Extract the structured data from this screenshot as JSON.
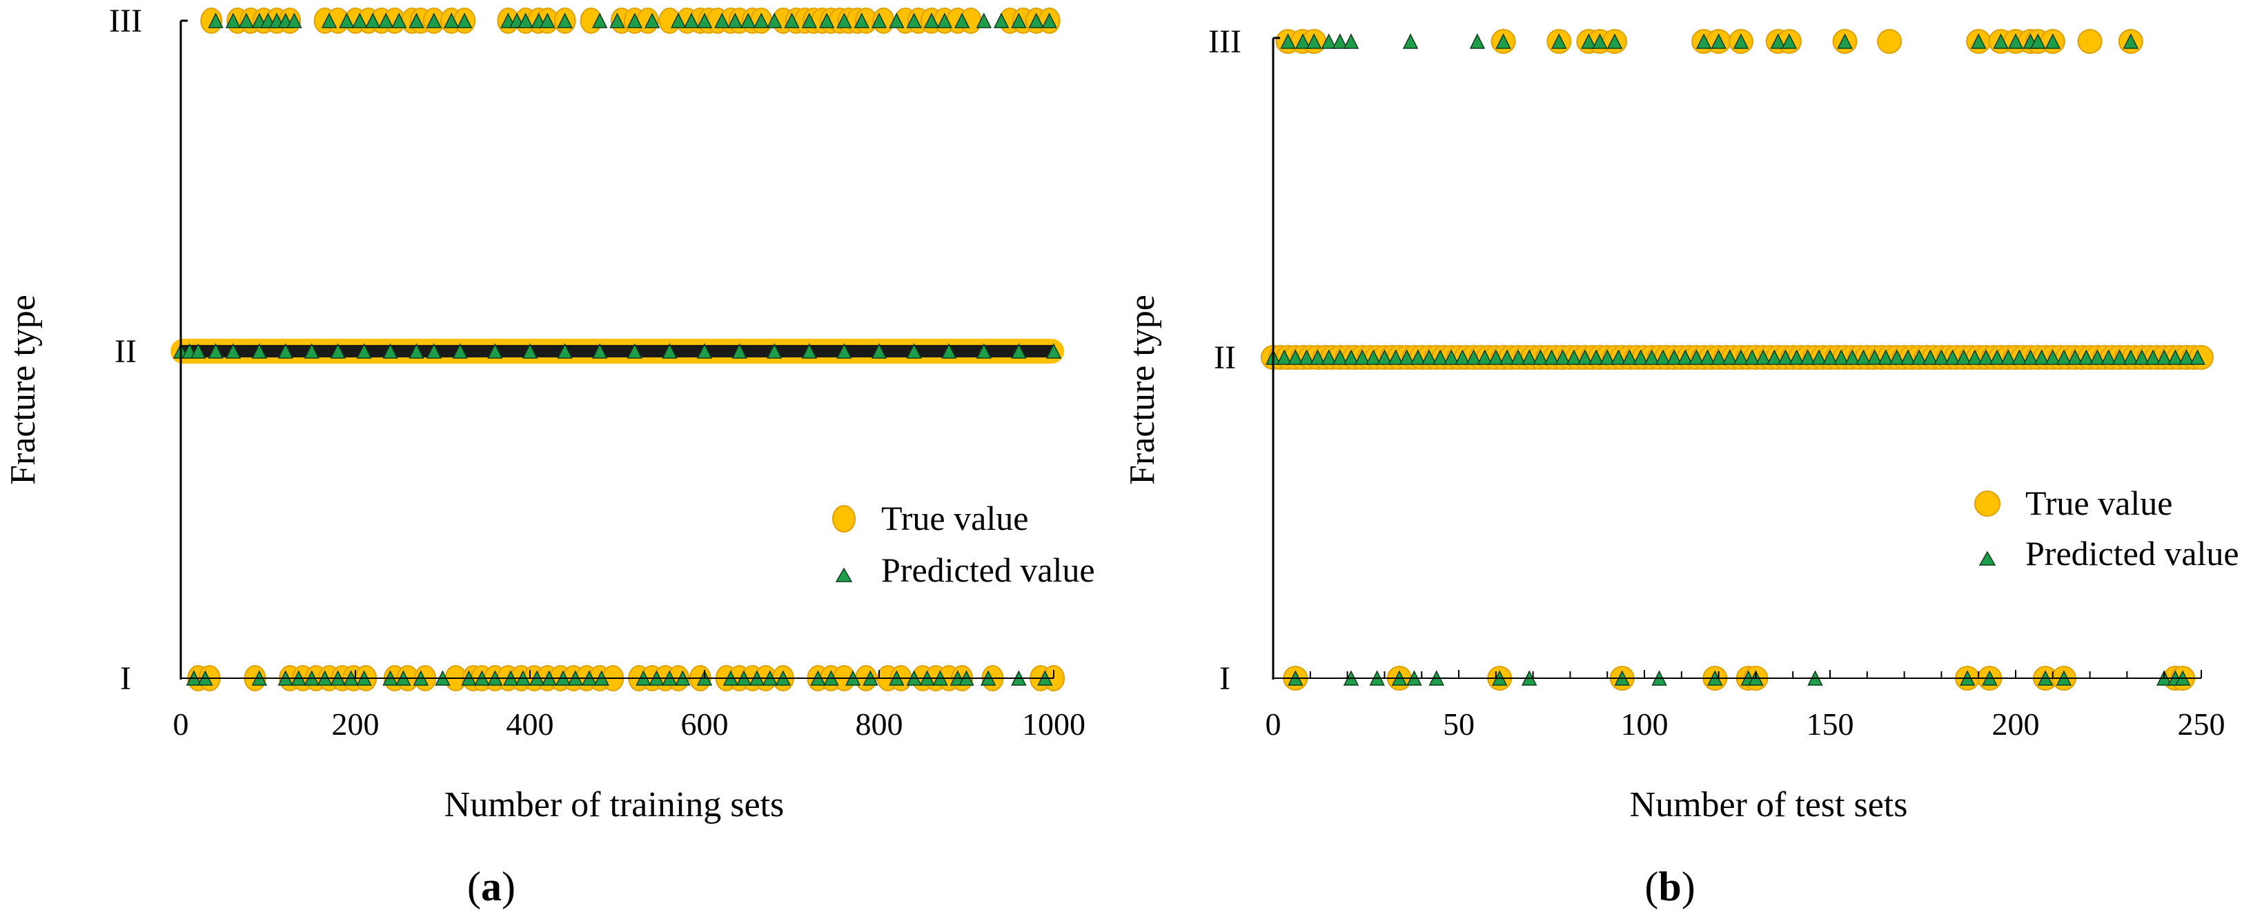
{
  "colors": {
    "true_fill": "#FFC000",
    "true_stroke": "#E0A000",
    "pred_fill": "#1E9E4A",
    "pred_stroke": "#0B3D1C",
    "axis": "#000000"
  },
  "chart_data": [
    {
      "type": "scatter",
      "panel": "(a)",
      "panel_parts": {
        "open": "(",
        "letter": "a",
        "close": ")"
      },
      "xlabel": "Number of training sets",
      "ylabel": "Fracture  type",
      "xlim": [
        0,
        1000
      ],
      "xticks": [
        0,
        200,
        400,
        600,
        800,
        1000
      ],
      "ycategories": [
        "I",
        "II",
        "III"
      ],
      "grid": false,
      "legend": {
        "position": "right-middle",
        "entries": [
          "True value",
          "Predicted value"
        ]
      },
      "series": [
        {
          "name": "True value",
          "marker": "circle",
          "class_I_x": [
            20,
            33,
            85,
            125,
            140,
            155,
            170,
            185,
            198,
            212,
            245,
            260,
            280,
            315,
            335,
            345,
            360,
            375,
            390,
            405,
            420,
            435,
            450,
            465,
            480,
            495,
            525,
            540,
            555,
            570,
            595,
            625,
            640,
            655,
            670,
            690,
            730,
            745,
            760,
            785,
            810,
            825,
            850,
            865,
            880,
            895,
            930,
            985,
            1000
          ],
          "class_II_note": "all remaining samples, continuous band from 0 to 1000",
          "class_III_x": [
            35,
            65,
            80,
            95,
            110,
            125,
            165,
            180,
            200,
            215,
            230,
            245,
            265,
            275,
            290,
            310,
            325,
            375,
            395,
            410,
            420,
            440,
            470,
            505,
            520,
            535,
            560,
            580,
            595,
            605,
            615,
            630,
            640,
            655,
            665,
            690,
            705,
            715,
            725,
            735,
            745,
            755,
            765,
            775,
            785,
            805,
            830,
            845,
            860,
            875,
            890,
            905,
            950,
            965,
            980,
            995
          ]
        },
        {
          "name": "Predicted value",
          "marker": "triangle",
          "class_I_x": [
            15,
            28,
            90,
            120,
            135,
            150,
            165,
            180,
            195,
            210,
            240,
            255,
            275,
            300,
            330,
            345,
            360,
            378,
            392,
            408,
            422,
            438,
            452,
            468,
            482,
            530,
            545,
            560,
            575,
            600,
            630,
            645,
            660,
            675,
            690,
            730,
            745,
            770,
            790,
            820,
            840,
            855,
            870,
            890,
            900,
            925,
            960,
            990
          ],
          "class_II_x": [
            0,
            10,
            20,
            40,
            60,
            90,
            120,
            150,
            180,
            210,
            240,
            270,
            290,
            320,
            360,
            400,
            440,
            480,
            520,
            560,
            600,
            640,
            680,
            720,
            760,
            800,
            840,
            880,
            920,
            960,
            1000
          ],
          "class_III_x": [
            40,
            60,
            75,
            90,
            100,
            110,
            120,
            130,
            170,
            190,
            205,
            220,
            235,
            250,
            270,
            290,
            310,
            325,
            375,
            385,
            395,
            410,
            420,
            440,
            480,
            500,
            520,
            540,
            570,
            585,
            600,
            620,
            635,
            650,
            665,
            680,
            700,
            720,
            740,
            760,
            780,
            800,
            820,
            840,
            860,
            875,
            895,
            920,
            940,
            960,
            980,
            995
          ]
        }
      ]
    },
    {
      "type": "scatter",
      "panel": "(b)",
      "panel_parts": {
        "open": "(",
        "letter": "b",
        "close": ")"
      },
      "xlabel": "Number of test sets",
      "ylabel": "Fracture  type",
      "xlim": [
        0,
        250
      ],
      "xticks": [
        0,
        50,
        100,
        150,
        200,
        250
      ],
      "minor_ticks": [
        10,
        20,
        30,
        40,
        60,
        70,
        80,
        90,
        110,
        120,
        130,
        140,
        160,
        170,
        180,
        190,
        210,
        220,
        230,
        240
      ],
      "ycategories": [
        "I",
        "II",
        "III"
      ],
      "grid": false,
      "legend": {
        "position": "right-middle",
        "entries": [
          "True value",
          "Predicted value"
        ]
      },
      "series": [
        {
          "name": "True value",
          "marker": "circle",
          "class_I_x": [
            6,
            34,
            61,
            94,
            119,
            128,
            130,
            187,
            193,
            208,
            213,
            243,
            245
          ],
          "class_II_x": [
            0,
            2,
            4,
            6,
            8,
            10,
            12,
            14,
            16,
            18,
            20,
            22,
            24,
            26,
            28,
            30,
            32,
            34,
            36,
            38,
            40,
            42,
            44,
            46,
            48,
            50,
            52,
            54,
            56,
            58,
            60,
            62,
            64,
            66,
            68,
            70,
            72,
            74,
            76,
            78,
            80,
            82,
            84,
            86,
            88,
            90,
            92,
            94,
            96,
            98,
            100,
            102,
            104,
            106,
            108,
            110,
            112,
            114,
            116,
            118,
            120,
            122,
            124,
            126,
            128,
            130,
            132,
            134,
            136,
            138,
            140,
            142,
            144,
            146,
            148,
            150,
            152,
            154,
            156,
            158,
            160,
            162,
            164,
            166,
            168,
            170,
            172,
            174,
            176,
            178,
            180,
            182,
            184,
            186,
            188,
            190,
            192,
            194,
            196,
            198,
            200,
            202,
            204,
            206,
            208,
            210,
            212,
            214,
            216,
            218,
            220,
            222,
            224,
            226,
            228,
            230,
            232,
            234,
            236,
            238,
            240,
            242,
            244,
            246,
            248,
            250
          ],
          "class_III_x": [
            4,
            8,
            11,
            62,
            77,
            85,
            88,
            92,
            116,
            120,
            126,
            136,
            139,
            154,
            166,
            190,
            196,
            200,
            204,
            206,
            210,
            220,
            231
          ]
        },
        {
          "name": "Predicted value",
          "marker": "triangle",
          "class_I_x": [
            6,
            21,
            28,
            34,
            38,
            44,
            61,
            69,
            94,
            104,
            119,
            128,
            130,
            146,
            187,
            193,
            208,
            213,
            240,
            243,
            245
          ],
          "class_II_x": [
            0,
            3,
            6,
            9,
            12,
            15,
            18,
            21,
            24,
            27,
            30,
            33,
            36,
            39,
            42,
            45,
            48,
            51,
            54,
            57,
            60,
            63,
            66,
            69,
            72,
            75,
            78,
            81,
            84,
            87,
            90,
            93,
            96,
            99,
            102,
            105,
            108,
            111,
            114,
            117,
            120,
            123,
            126,
            129,
            132,
            135,
            138,
            141,
            144,
            147,
            150,
            153,
            156,
            159,
            162,
            165,
            168,
            171,
            174,
            177,
            180,
            183,
            186,
            189,
            192,
            195,
            198,
            201,
            204,
            207,
            210,
            213,
            216,
            219,
            222,
            225,
            228,
            231,
            234,
            237,
            240,
            243,
            246,
            249
          ],
          "class_III_x": [
            4,
            8,
            11,
            15,
            18,
            21,
            37,
            55,
            62,
            77,
            85,
            88,
            92,
            116,
            120,
            126,
            136,
            139,
            154,
            190,
            196,
            200,
            204,
            206,
            210,
            231
          ]
        }
      ]
    }
  ]
}
